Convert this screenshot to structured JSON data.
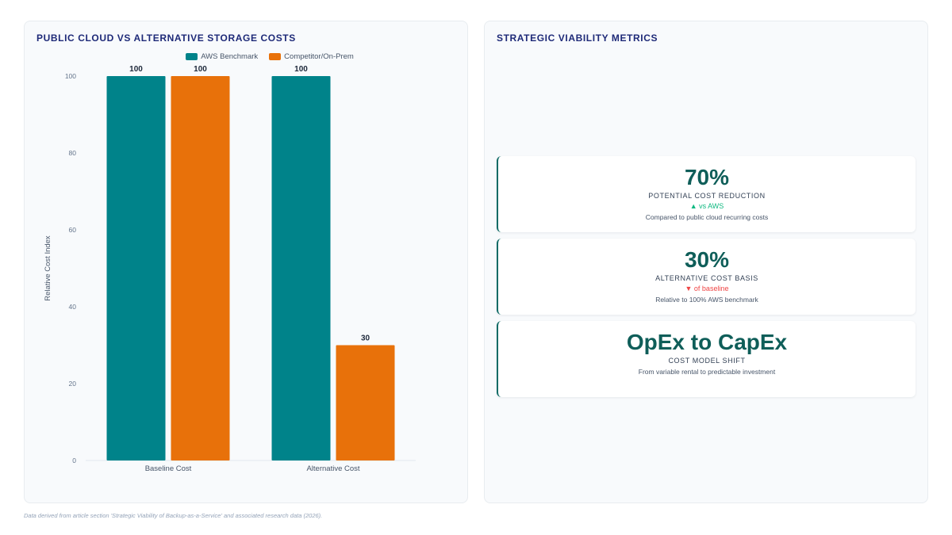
{
  "left_panel": {
    "title": "PUBLIC CLOUD VS ALTERNATIVE STORAGE COSTS"
  },
  "right_panel": {
    "title": "STRATEGIC VIABILITY METRICS",
    "metrics": [
      {
        "value": "70%",
        "label": "POTENTIAL COST REDUCTION",
        "trend": "▲ vs AWS",
        "trend_direction": "up",
        "description": "Compared to public cloud recurring costs"
      },
      {
        "value": "30%",
        "label": "ALTERNATIVE COST BASIS",
        "trend": "▼ of baseline",
        "trend_direction": "down",
        "description": "Relative to 100% AWS benchmark"
      },
      {
        "value": "OpEx to CapEx",
        "label": "COST MODEL SHIFT",
        "description": "From variable rental to predictable investment"
      }
    ]
  },
  "footnote": "Data derived from article section 'Strategic Viability of Backup-as-a-Service' and associated research data (2026).",
  "chart_data": {
    "type": "bar",
    "categories": [
      "Baseline Cost",
      "Alternative Cost"
    ],
    "series": [
      {
        "name": "AWS Benchmark",
        "values": [
          100,
          100
        ],
        "color": "#00838a"
      },
      {
        "name": "Competitor/On-Prem",
        "values": [
          100,
          30
        ],
        "color": "#e8710a"
      }
    ],
    "xlabel": "",
    "ylabel": "Relative Cost Index",
    "ylim": [
      0,
      100
    ],
    "yticks": [
      0,
      20,
      40,
      60,
      80,
      100
    ],
    "grid": false,
    "legend": "top-center",
    "data_labels": true
  }
}
